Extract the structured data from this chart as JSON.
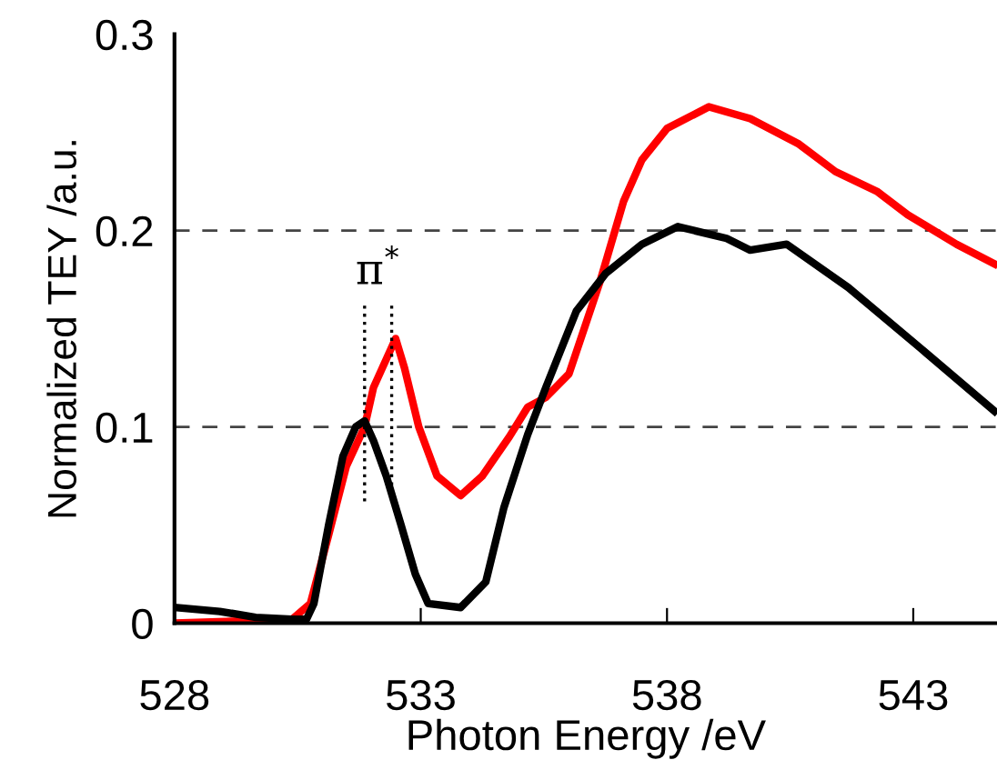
{
  "chart_data": {
    "type": "line",
    "xlabel": "Photon Energy /eV",
    "ylabel": "Normalized TEY /a.u.",
    "xlim": [
      528,
      544.7
    ],
    "xticks": [
      528,
      533,
      538,
      543
    ],
    "ylim": [
      0,
      0.3
    ],
    "yticks": [
      0,
      0.1,
      0.2,
      0.3
    ],
    "grid": "y",
    "marker": "none",
    "line_style": "solid",
    "series": [
      {
        "color": "#ff0000",
        "x": [
          528.0,
          530.39,
          530.76,
          531.13,
          531.49,
          531.86,
          532.04,
          532.49,
          532.67,
          532.96,
          533.33,
          533.81,
          534.25,
          534.8,
          535.17,
          535.54,
          536.01,
          536.64,
          537.12,
          537.49,
          538.0,
          538.85,
          539.69,
          540.68,
          541.42,
          542.26,
          542.89,
          543.88,
          544.65
        ],
        "values": [
          0.0,
          0.002,
          0.01,
          0.045,
          0.08,
          0.1,
          0.12,
          0.145,
          0.13,
          0.1,
          0.075,
          0.065,
          0.075,
          0.095,
          0.11,
          0.115,
          0.127,
          0.174,
          0.215,
          0.236,
          0.252,
          0.263,
          0.257,
          0.244,
          0.23,
          0.22,
          0.208,
          0.193,
          0.183
        ]
      },
      {
        "color": "#000000",
        "x": [
          528.0,
          528.92,
          529.65,
          530.39,
          530.68,
          530.83,
          531.13,
          531.42,
          531.68,
          531.86,
          532.04,
          532.3,
          532.6,
          532.89,
          533.15,
          533.81,
          534.32,
          534.69,
          535.17,
          535.54,
          536.16,
          536.75,
          537.49,
          538.22,
          539.21,
          539.69,
          540.43,
          541.68,
          543.15,
          544.65
        ],
        "values": [
          0.008,
          0.006,
          0.003,
          0.002,
          0.002,
          0.01,
          0.05,
          0.085,
          0.1,
          0.103,
          0.093,
          0.075,
          0.05,
          0.025,
          0.01,
          0.008,
          0.021,
          0.059,
          0.096,
          0.12,
          0.159,
          0.178,
          0.193,
          0.202,
          0.196,
          0.19,
          0.193,
          0.171,
          0.14,
          0.108
        ]
      },
      {
        "type": "line",
        "line_style": "dotted",
        "color": "#000000",
        "x": [
          531.86,
          531.86
        ],
        "values": [
          0.062,
          0.164
        ]
      },
      {
        "type": "line",
        "line_style": "dotted",
        "color": "#000000",
        "x": [
          532.41,
          532.41
        ],
        "values": [
          0.062,
          0.164
        ]
      }
    ],
    "annotations": [
      "π$^{*}$"
    ]
  }
}
